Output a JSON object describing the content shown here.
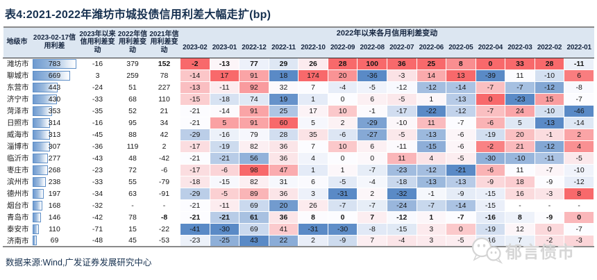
{
  "title": "表4:2021-2022年潍坊市城投债信用利差大幅走扩(bp)",
  "source_note": "数据来源:Wind,广发证券发展研究中心",
  "watermark": {
    "icon": "wechat-chat-bubbles-icon",
    "text": "郁言债市"
  },
  "colors": {
    "title_navy": "#16304F",
    "header_bg": "#DCE6F1",
    "table_border_gray": "#8A8A8A",
    "bar_fill_blue": "#6E9AD0",
    "bar_border_blue": "#5F8FC7",
    "watermark_gray": "#D6D6D6"
  },
  "chart_data": {
    "type": "table",
    "subtype": "heatmap-table",
    "heat_color_scale": {
      "low": "#5A8AC6",
      "mid": "#FCFCFF",
      "high": "#F8696B",
      "applied": "per-column 3-color scale on the 14 monthly change columns",
      "midpoint": "column median"
    },
    "bar_column": {
      "style": "blue gradient data bar",
      "max_value": 783
    },
    "columns": {
      "city": "地级市",
      "spread": "2023-02-17信用利差",
      "chg_2023": "2023年以来信用利差变动",
      "chg_2022": "2022年信用利差变动",
      "chg_2021": "2021年信用利差变动",
      "monthly_group": "2022年以来各月信用利差变动",
      "months": [
        "2023-02",
        "2023-01",
        "2022-12",
        "2022-11",
        "2022-10",
        "2022-09",
        "2022-08",
        "2022-07",
        "2022-06",
        "2022-05",
        "2022-04",
        "2022-03",
        "2022-02",
        "2022-01"
      ]
    },
    "rows": [
      {
        "city": "潍坊市",
        "spread": 783,
        "chg_2023": -16,
        "chg_2022": 379,
        "chg_2021": 152,
        "emphasis": true,
        "months": [
          -2,
          -13,
          77,
          29,
          26,
          28,
          100,
          36,
          25,
          8,
          0,
          33,
          28,
          -11
        ]
      },
      {
        "city": "聊城市",
        "spread": 669,
        "chg_2023": 3,
        "chg_2022": 259,
        "chg_2021": 78,
        "months": [
          -14,
          17,
          91,
          18,
          174,
          20,
          -36,
          -3,
          14,
          13,
          -39,
          11,
          -10,
          6
        ]
      },
      {
        "city": "东营市",
        "spread": 443,
        "chg_2023": -24,
        "chg_2022": 51,
        "chg_2021": 227,
        "months": [
          -13,
          -11,
          92,
          32,
          7,
          -4,
          -5,
          -12,
          -12,
          -14,
          -7,
          -7,
          -12,
          -8
        ]
      },
      {
        "city": "济宁市",
        "spread": 430,
        "chg_2023": -33,
        "chg_2022": 68,
        "chg_2021": 110,
        "months": [
          -15,
          -18,
          74,
          19,
          1,
          0,
          6,
          -5,
          1,
          -13,
          0,
          -23,
          15,
          -7
        ]
      },
      {
        "city": "菏泽市",
        "spread": 353,
        "chg_2023": -35,
        "chg_2022": 52,
        "chg_2021": 21,
        "months": [
          -21,
          -14,
          91,
          25,
          17,
          10,
          -1,
          -17,
          -22,
          -12,
          -7,
          24,
          -10,
          -46
        ]
      },
      {
        "city": "日照市",
        "spread": 314,
        "chg_2023": -16,
        "chg_2022": 95,
        "chg_2021": 34,
        "months": [
          -21,
          5,
          91,
          60,
          5,
          2,
          -29,
          -10,
          11,
          -7,
          -6,
          5,
          -13,
          -14
        ]
      },
      {
        "city": "威海市",
        "spread": 313,
        "chg_2023": -45,
        "chg_2022": 88,
        "chg_2021": 42,
        "months": [
          -29,
          -16,
          79,
          28,
          35,
          -6,
          -27,
          -5,
          -13,
          -6,
          -19,
          20,
          -1,
          2
        ]
      },
      {
        "city": "淄博市",
        "spread": 307,
        "chg_2023": -36,
        "chg_2022": 119,
        "chg_2021": 2,
        "months": [
          -17,
          -19,
          82,
          36,
          7,
          10,
          6,
          -11,
          -15,
          -6,
          -2,
          21,
          -12,
          4
        ]
      },
      {
        "city": "临沂市",
        "spread": 277,
        "chg_2023": -43,
        "chg_2022": 48,
        "chg_2021": -42,
        "months": [
          -21,
          -21,
          56,
          36,
          4,
          0,
          0,
          11,
          4,
          -5,
          -30,
          -10,
          -11,
          -5
        ]
      },
      {
        "city": "枣庄市",
        "spread": 268,
        "chg_2023": -23,
        "chg_2022": 72,
        "chg_2021": -6,
        "months": [
          -17,
          -6,
          98,
          47,
          1,
          1,
          -7,
          -23,
          -12,
          -21,
          -6,
          11,
          -7,
          -10
        ]
      },
      {
        "city": "滨州市",
        "spread": 238,
        "chg_2023": -33,
        "chg_2022": 55,
        "chg_2021": -79,
        "months": [
          -18,
          -15,
          82,
          31,
          6,
          -5,
          -4,
          -18,
          -13,
          -13,
          -9,
          18,
          -9,
          -12
        ]
      },
      {
        "city": "德州市",
        "spread": 197,
        "chg_2023": -34,
        "chg_2022": 63,
        "chg_2021": -91,
        "months": [
          -29,
          -5,
          89,
          36,
          3,
          -31,
          2,
          -32,
          -1,
          -9,
          -15,
          16,
          -3,
          8
        ]
      },
      {
        "city": "烟台市",
        "spread": 168,
        "chg_2023": -32,
        "chg_2022": "-",
        "chg_2021": "-",
        "months": [
          -21,
          -11,
          69,
          20,
          26,
          -7,
          -7,
          -24,
          -7,
          -14,
          -15,
          "-",
          "-",
          "-"
        ]
      },
      {
        "city": "青岛市",
        "spread": 146,
        "chg_2023": -42,
        "chg_2022": 78,
        "chg_2021": -8,
        "emphasis": true,
        "months": [
          -21,
          -21,
          61,
          36,
          8,
          0,
          7,
          -12,
          1,
          -7,
          -16,
          8,
          -9,
          0
        ]
      },
      {
        "city": "泰安市",
        "spread": 110,
        "chg_2023": -71,
        "chg_2022": 15,
        "chg_2021": -22,
        "months": [
          -41,
          -30,
          69,
          41,
          -31,
          -30,
          -8,
          -15,
          3,
          0,
          -19,
          12,
          0,
          -7
        ]
      },
      {
        "city": "济南市",
        "spread": 69,
        "chg_2023": -48,
        "chg_2022": 45,
        "chg_2021": -53,
        "months": [
          -23,
          -25,
          43,
          22,
          2,
          -9,
          7,
          -4,
          3,
          -5,
          -16,
          7,
          -2,
          -3
        ]
      }
    ]
  }
}
